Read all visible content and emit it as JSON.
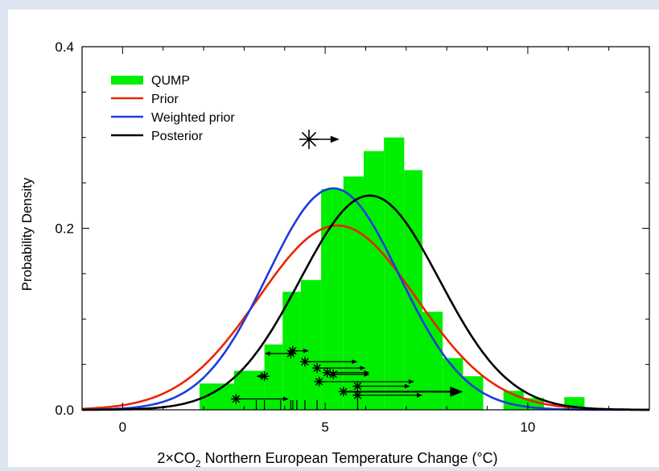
{
  "chart_data": {
    "type": "area",
    "xlabel": "2×CO",
    "xlabel_sub": "2",
    "xlabel_rest": " Northern European Temperature Change (°C)",
    "ylabel": "Probability Density",
    "xlim": [
      -1,
      13
    ],
    "ylim": [
      0,
      0.4
    ],
    "xticks": [
      0,
      5,
      10
    ],
    "xtick_labels": [
      "0",
      "5",
      "10"
    ],
    "yticks": [
      0.0,
      0.2,
      0.4
    ],
    "ytick_labels": [
      "0.0",
      "0.2",
      "0.4"
    ],
    "legend_position": "top-left",
    "legend": [
      {
        "label": "QUMP",
        "color": "#00ee00",
        "kind": "bar"
      },
      {
        "label": "Prior",
        "color": "#ee2200",
        "kind": "line"
      },
      {
        "label": "Weighted prior",
        "color": "#1e3cdc",
        "kind": "line"
      },
      {
        "label": "Posterior",
        "color": "#000000",
        "kind": "line"
      }
    ],
    "histogram": {
      "name": "QUMP",
      "color": "#00ee00",
      "bins": [
        {
          "x0": 1.9,
          "x1": 2.75,
          "y": 0.029
        },
        {
          "x0": 2.75,
          "x1": 3.5,
          "y": 0.043
        },
        {
          "x0": 3.5,
          "x1": 3.95,
          "y": 0.072
        },
        {
          "x0": 3.95,
          "x1": 4.4,
          "y": 0.13
        },
        {
          "x0": 4.4,
          "x1": 4.9,
          "y": 0.143
        },
        {
          "x0": 4.9,
          "x1": 5.45,
          "y": 0.243
        },
        {
          "x0": 5.45,
          "x1": 5.95,
          "y": 0.257
        },
        {
          "x0": 5.95,
          "x1": 6.45,
          "y": 0.285
        },
        {
          "x0": 6.45,
          "x1": 6.95,
          "y": 0.3
        },
        {
          "x0": 6.95,
          "x1": 7.4,
          "y": 0.264
        },
        {
          "x0": 7.4,
          "x1": 7.9,
          "y": 0.108
        },
        {
          "x0": 7.9,
          "x1": 8.4,
          "y": 0.057
        },
        {
          "x0": 8.4,
          "x1": 8.9,
          "y": 0.037
        },
        {
          "x0": 9.4,
          "x1": 9.9,
          "y": 0.021
        },
        {
          "x0": 9.9,
          "x1": 10.4,
          "y": 0.013
        },
        {
          "x0": 10.9,
          "x1": 11.4,
          "y": 0.014
        }
      ]
    },
    "series": [
      {
        "name": "Prior",
        "color": "#ee2200",
        "distribution": "normal",
        "mean": 5.3,
        "sd": 1.95,
        "peak": 0.203
      },
      {
        "name": "Weighted prior",
        "color": "#1e3cdc",
        "distribution": "normal",
        "mean": 5.2,
        "sd": 1.63,
        "peak": 0.244
      },
      {
        "name": "Posterior",
        "color": "#000000",
        "distribution": "normal",
        "mean": 6.1,
        "sd": 1.72,
        "peak": 0.236
      }
    ],
    "annotations": {
      "top_star": {
        "x": 4.6,
        "y": 0.298,
        "arrow_to": 5.35
      },
      "obs_stars": [
        {
          "x": 2.8,
          "y": 0.012,
          "arrow_to": 4.1
        },
        {
          "x": 3.5,
          "y": 0.037,
          "arrow_to": 3.3
        },
        {
          "x": 4.15,
          "y": 0.062,
          "arrow_to": 3.5
        },
        {
          "x": 4.2,
          "y": 0.065,
          "arrow_to": 4.6
        },
        {
          "x": 4.5,
          "y": 0.053,
          "arrow_to": 5.8
        },
        {
          "x": 4.8,
          "y": 0.046,
          "arrow_to": 6.0
        },
        {
          "x": 5.05,
          "y": 0.041,
          "arrow_to": 6.1
        },
        {
          "x": 5.2,
          "y": 0.039,
          "arrow_to": 6.1
        },
        {
          "x": 4.85,
          "y": 0.031,
          "arrow_to": 7.2
        },
        {
          "x": 5.8,
          "y": 0.026,
          "arrow_to": 7.1
        },
        {
          "x": 5.45,
          "y": 0.02,
          "arrow_to": 8.4
        },
        {
          "x": 5.8,
          "y": 0.016,
          "arrow_to": 7.4
        }
      ],
      "rug_x": [
        3.3,
        3.5,
        3.9,
        4.15,
        4.2,
        4.3,
        4.5,
        4.8,
        5.8
      ]
    }
  }
}
